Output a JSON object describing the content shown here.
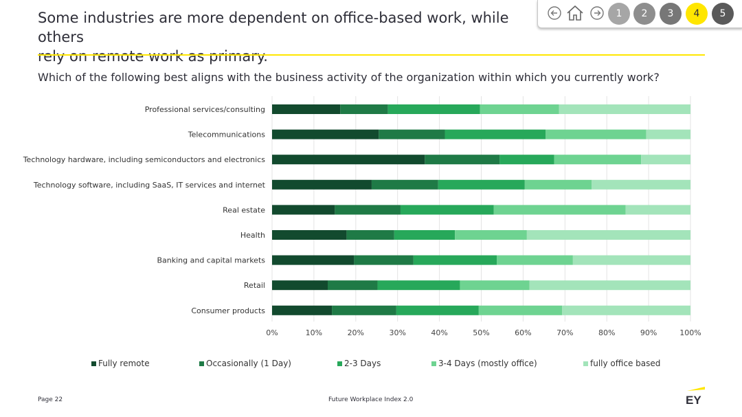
{
  "header": {
    "title_line1": "Some industries are more dependent on office-based work, while others",
    "title_line2": "rely on remote work as primary."
  },
  "question": "Which of the following best aligns with the business activity of the organization within which you currently work?",
  "nav": {
    "icons": [
      "back-arrow-icon",
      "home-icon",
      "forward-arrow-icon"
    ],
    "pages": [
      "1",
      "2",
      "3",
      "4",
      "5"
    ],
    "active_page": "4",
    "colors": {
      "inactive": "#9e9e9e",
      "active": "#ffe600",
      "active_text": "#2e2e38",
      "page5": "#5a5a5a"
    }
  },
  "footer": {
    "page": "Page 22",
    "center": "Future Workplace Index 2.0",
    "logo": "EY"
  },
  "chart_data": {
    "type": "bar",
    "orientation": "horizontal",
    "stacked": true,
    "title": "",
    "xlabel": "",
    "ylabel": "",
    "xlim": [
      0,
      100
    ],
    "x_ticks": [
      "0%",
      "10%",
      "20%",
      "30%",
      "40%",
      "50%",
      "60%",
      "70%",
      "80%",
      "90%",
      "100%"
    ],
    "grid": "vertical",
    "legend_position": "bottom",
    "categories": [
      "Professional services/consulting",
      "Telecommunications",
      "Technology hardware, including semiconductors and electronics",
      "Technology software, including SaaS, IT services and internet",
      "Real estate",
      "Health",
      "Banking and capital markets",
      "Retail",
      "Consumer products"
    ],
    "series": [
      {
        "name": "Fully remote",
        "color": "#124a2e",
        "values": [
          16.3,
          25.5,
          36.5,
          23.8,
          15.0,
          17.8,
          19.6,
          13.3,
          14.3
        ]
      },
      {
        "name": "Occasionally (1 Day)",
        "color": "#1f7a46",
        "values": [
          11.4,
          15.8,
          17.9,
          15.9,
          15.7,
          11.4,
          14.2,
          11.9,
          15.4
        ]
      },
      {
        "name": "2-3 Days",
        "color": "#27a85a",
        "values": [
          22.0,
          24.1,
          13.0,
          20.7,
          22.3,
          14.5,
          19.9,
          19.7,
          19.7
        ]
      },
      {
        "name": "3-4 Days (mostly office)",
        "color": "#6ed391",
        "values": [
          18.9,
          24.0,
          20.8,
          16.0,
          31.5,
          17.2,
          18.2,
          16.6,
          19.9
        ]
      },
      {
        "name": "fully office based",
        "color": "#a3e4ba",
        "values": [
          31.4,
          10.6,
          11.8,
          23.6,
          15.5,
          39.1,
          28.1,
          38.5,
          30.7
        ]
      }
    ]
  }
}
